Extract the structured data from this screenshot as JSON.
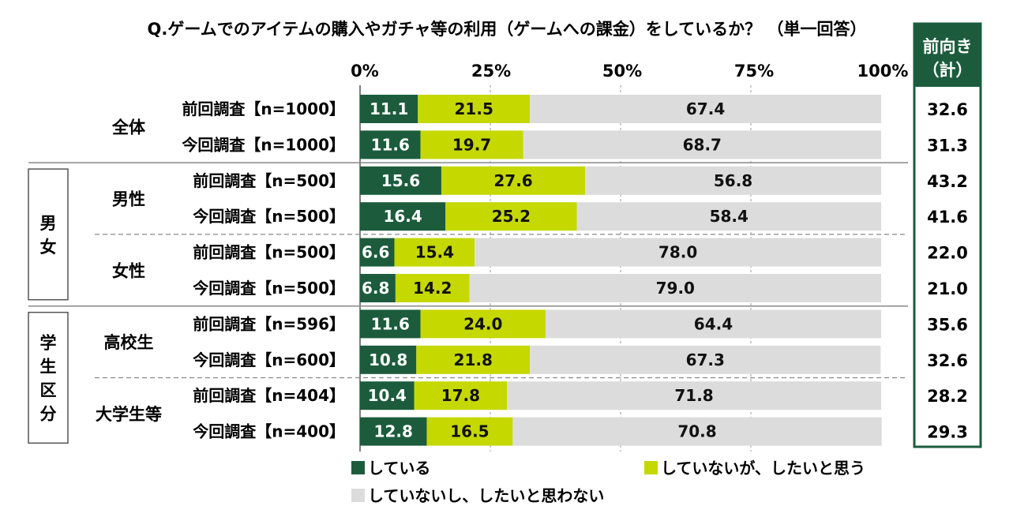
{
  "chart_data": {
    "type": "bar",
    "orientation": "horizontal",
    "stacked": true,
    "title": "Q.ゲームでのアイテムの購入やガチャ等の利用（ゲームへの課金）をしているか？ （単一回答）",
    "xlim": [
      0,
      100
    ],
    "x_ticks": [
      "0%",
      "25%",
      "50%",
      "75%",
      "100%"
    ],
    "summary_header": "前向き\n（計）",
    "colors": {
      "doing": "#1c5c3d",
      "want": "#c5d800",
      "no": "#dcdcdc",
      "header_bg": "#1c5c3d",
      "header_border": "#1c5c3d"
    },
    "series": [
      {
        "name": "している",
        "key": "doing"
      },
      {
        "name": "していないが、したいと思う",
        "key": "want"
      },
      {
        "name": "していないし、したいと思わない",
        "key": "no"
      }
    ],
    "groups": [
      {
        "outer": "",
        "label": "全体",
        "rows": [
          {
            "label": "前回調査【n=1000】",
            "values": [
              11.1,
              21.5,
              67.4
            ],
            "display": [
              "11.1",
              "21.5",
              "67.4"
            ],
            "total": "32.6"
          },
          {
            "label": "今回調査【n=1000】",
            "values": [
              11.6,
              19.7,
              68.7
            ],
            "display": [
              "11.6",
              "19.7",
              "68.7"
            ],
            "total": "31.3"
          }
        ]
      },
      {
        "outer": "男女",
        "label": "男性",
        "rows": [
          {
            "label": "前回調査【n=500】",
            "values": [
              15.6,
              27.6,
              56.8
            ],
            "display": [
              "15.6",
              "27.6",
              "56.8"
            ],
            "total": "43.2"
          },
          {
            "label": "今回調査【n=500】",
            "values": [
              16.4,
              25.2,
              58.4
            ],
            "display": [
              "16.4",
              "25.2",
              "58.4"
            ],
            "total": "41.6"
          }
        ]
      },
      {
        "outer": "男女",
        "label": "女性",
        "rows": [
          {
            "label": "前回調査【n=500】",
            "values": [
              6.6,
              15.4,
              78.0
            ],
            "display": [
              "6.6",
              "15.4",
              "78.0"
            ],
            "total": "22.0"
          },
          {
            "label": "今回調査【n=500】",
            "values": [
              6.8,
              14.2,
              79.0
            ],
            "display": [
              "6.8",
              "14.2",
              "79.0"
            ],
            "total": "21.0"
          }
        ]
      },
      {
        "outer": "学生区分",
        "label": "高校生",
        "rows": [
          {
            "label": "前回調査【n=596】",
            "values": [
              11.6,
              24.0,
              64.4
            ],
            "display": [
              "11.6",
              "24.0",
              "64.4"
            ],
            "total": "35.6"
          },
          {
            "label": "今回調査【n=600】",
            "values": [
              10.8,
              21.8,
              67.3
            ],
            "display": [
              "10.8",
              "21.8",
              "67.3"
            ],
            "total": "32.6"
          }
        ]
      },
      {
        "outer": "学生区分",
        "label": "大学生等",
        "rows": [
          {
            "label": "前回調査【n=404】",
            "values": [
              10.4,
              17.8,
              71.8
            ],
            "display": [
              "10.4",
              "17.8",
              "71.8"
            ],
            "total": "28.2"
          },
          {
            "label": "今回調査【n=400】",
            "values": [
              12.8,
              16.5,
              70.8
            ],
            "display": [
              "12.8",
              "16.5",
              "70.8"
            ],
            "total": "29.3"
          }
        ]
      }
    ],
    "outer_groups": [
      {
        "label": "男女",
        "chars": [
          "男",
          "女"
        ]
      },
      {
        "label": "学生区分",
        "chars": [
          "学",
          "生",
          "区",
          "分"
        ]
      }
    ]
  }
}
